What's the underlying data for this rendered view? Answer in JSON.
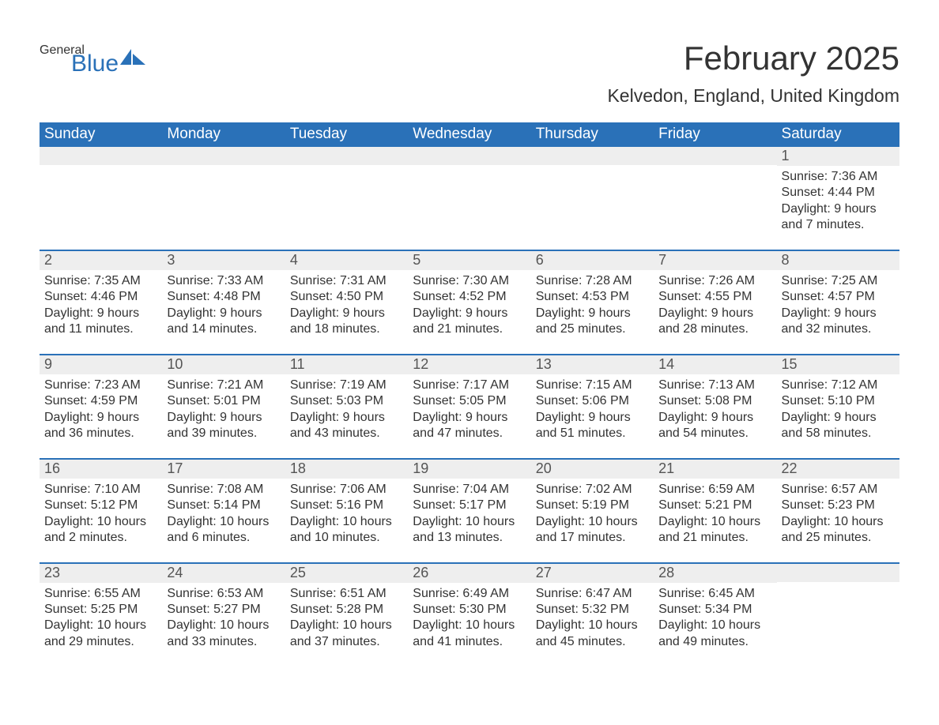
{
  "logo": {
    "text1": "General",
    "text2": "Blue",
    "icon_color": "#2a71b8"
  },
  "title": "February 2025",
  "location": "Kelvedon, England, United Kingdom",
  "colors": {
    "header_bg": "#2a71b8",
    "header_text": "#ffffff",
    "daynum_bg": "#eeeeee",
    "body_text": "#333333",
    "rule": "#2a71b8"
  },
  "day_names": [
    "Sunday",
    "Monday",
    "Tuesday",
    "Wednesday",
    "Thursday",
    "Friday",
    "Saturday"
  ],
  "weeks": [
    [
      {
        "n": "",
        "sr": "",
        "ss": "",
        "dl1": "",
        "dl2": ""
      },
      {
        "n": "",
        "sr": "",
        "ss": "",
        "dl1": "",
        "dl2": ""
      },
      {
        "n": "",
        "sr": "",
        "ss": "",
        "dl1": "",
        "dl2": ""
      },
      {
        "n": "",
        "sr": "",
        "ss": "",
        "dl1": "",
        "dl2": ""
      },
      {
        "n": "",
        "sr": "",
        "ss": "",
        "dl1": "",
        "dl2": ""
      },
      {
        "n": "",
        "sr": "",
        "ss": "",
        "dl1": "",
        "dl2": ""
      },
      {
        "n": "1",
        "sr": "Sunrise: 7:36 AM",
        "ss": "Sunset: 4:44 PM",
        "dl1": "Daylight: 9 hours",
        "dl2": "and 7 minutes."
      }
    ],
    [
      {
        "n": "2",
        "sr": "Sunrise: 7:35 AM",
        "ss": "Sunset: 4:46 PM",
        "dl1": "Daylight: 9 hours",
        "dl2": "and 11 minutes."
      },
      {
        "n": "3",
        "sr": "Sunrise: 7:33 AM",
        "ss": "Sunset: 4:48 PM",
        "dl1": "Daylight: 9 hours",
        "dl2": "and 14 minutes."
      },
      {
        "n": "4",
        "sr": "Sunrise: 7:31 AM",
        "ss": "Sunset: 4:50 PM",
        "dl1": "Daylight: 9 hours",
        "dl2": "and 18 minutes."
      },
      {
        "n": "5",
        "sr": "Sunrise: 7:30 AM",
        "ss": "Sunset: 4:52 PM",
        "dl1": "Daylight: 9 hours",
        "dl2": "and 21 minutes."
      },
      {
        "n": "6",
        "sr": "Sunrise: 7:28 AM",
        "ss": "Sunset: 4:53 PM",
        "dl1": "Daylight: 9 hours",
        "dl2": "and 25 minutes."
      },
      {
        "n": "7",
        "sr": "Sunrise: 7:26 AM",
        "ss": "Sunset: 4:55 PM",
        "dl1": "Daylight: 9 hours",
        "dl2": "and 28 minutes."
      },
      {
        "n": "8",
        "sr": "Sunrise: 7:25 AM",
        "ss": "Sunset: 4:57 PM",
        "dl1": "Daylight: 9 hours",
        "dl2": "and 32 minutes."
      }
    ],
    [
      {
        "n": "9",
        "sr": "Sunrise: 7:23 AM",
        "ss": "Sunset: 4:59 PM",
        "dl1": "Daylight: 9 hours",
        "dl2": "and 36 minutes."
      },
      {
        "n": "10",
        "sr": "Sunrise: 7:21 AM",
        "ss": "Sunset: 5:01 PM",
        "dl1": "Daylight: 9 hours",
        "dl2": "and 39 minutes."
      },
      {
        "n": "11",
        "sr": "Sunrise: 7:19 AM",
        "ss": "Sunset: 5:03 PM",
        "dl1": "Daylight: 9 hours",
        "dl2": "and 43 minutes."
      },
      {
        "n": "12",
        "sr": "Sunrise: 7:17 AM",
        "ss": "Sunset: 5:05 PM",
        "dl1": "Daylight: 9 hours",
        "dl2": "and 47 minutes."
      },
      {
        "n": "13",
        "sr": "Sunrise: 7:15 AM",
        "ss": "Sunset: 5:06 PM",
        "dl1": "Daylight: 9 hours",
        "dl2": "and 51 minutes."
      },
      {
        "n": "14",
        "sr": "Sunrise: 7:13 AM",
        "ss": "Sunset: 5:08 PM",
        "dl1": "Daylight: 9 hours",
        "dl2": "and 54 minutes."
      },
      {
        "n": "15",
        "sr": "Sunrise: 7:12 AM",
        "ss": "Sunset: 5:10 PM",
        "dl1": "Daylight: 9 hours",
        "dl2": "and 58 minutes."
      }
    ],
    [
      {
        "n": "16",
        "sr": "Sunrise: 7:10 AM",
        "ss": "Sunset: 5:12 PM",
        "dl1": "Daylight: 10 hours",
        "dl2": "and 2 minutes."
      },
      {
        "n": "17",
        "sr": "Sunrise: 7:08 AM",
        "ss": "Sunset: 5:14 PM",
        "dl1": "Daylight: 10 hours",
        "dl2": "and 6 minutes."
      },
      {
        "n": "18",
        "sr": "Sunrise: 7:06 AM",
        "ss": "Sunset: 5:16 PM",
        "dl1": "Daylight: 10 hours",
        "dl2": "and 10 minutes."
      },
      {
        "n": "19",
        "sr": "Sunrise: 7:04 AM",
        "ss": "Sunset: 5:17 PM",
        "dl1": "Daylight: 10 hours",
        "dl2": "and 13 minutes."
      },
      {
        "n": "20",
        "sr": "Sunrise: 7:02 AM",
        "ss": "Sunset: 5:19 PM",
        "dl1": "Daylight: 10 hours",
        "dl2": "and 17 minutes."
      },
      {
        "n": "21",
        "sr": "Sunrise: 6:59 AM",
        "ss": "Sunset: 5:21 PM",
        "dl1": "Daylight: 10 hours",
        "dl2": "and 21 minutes."
      },
      {
        "n": "22",
        "sr": "Sunrise: 6:57 AM",
        "ss": "Sunset: 5:23 PM",
        "dl1": "Daylight: 10 hours",
        "dl2": "and 25 minutes."
      }
    ],
    [
      {
        "n": "23",
        "sr": "Sunrise: 6:55 AM",
        "ss": "Sunset: 5:25 PM",
        "dl1": "Daylight: 10 hours",
        "dl2": "and 29 minutes."
      },
      {
        "n": "24",
        "sr": "Sunrise: 6:53 AM",
        "ss": "Sunset: 5:27 PM",
        "dl1": "Daylight: 10 hours",
        "dl2": "and 33 minutes."
      },
      {
        "n": "25",
        "sr": "Sunrise: 6:51 AM",
        "ss": "Sunset: 5:28 PM",
        "dl1": "Daylight: 10 hours",
        "dl2": "and 37 minutes."
      },
      {
        "n": "26",
        "sr": "Sunrise: 6:49 AM",
        "ss": "Sunset: 5:30 PM",
        "dl1": "Daylight: 10 hours",
        "dl2": "and 41 minutes."
      },
      {
        "n": "27",
        "sr": "Sunrise: 6:47 AM",
        "ss": "Sunset: 5:32 PM",
        "dl1": "Daylight: 10 hours",
        "dl2": "and 45 minutes."
      },
      {
        "n": "28",
        "sr": "Sunrise: 6:45 AM",
        "ss": "Sunset: 5:34 PM",
        "dl1": "Daylight: 10 hours",
        "dl2": "and 49 minutes."
      },
      {
        "n": "",
        "sr": "",
        "ss": "",
        "dl1": "",
        "dl2": ""
      }
    ]
  ]
}
